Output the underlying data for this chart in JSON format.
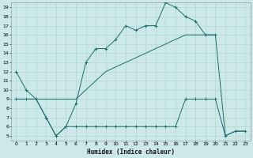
{
  "xlabel": "Humidex (Indice chaleur)",
  "background_color": "#cce8e8",
  "grid_color": "#aad4d0",
  "line_color": "#1a6e6a",
  "xlim": [
    -0.5,
    23.5
  ],
  "ylim": [
    4.5,
    19.5
  ],
  "xticks": [
    0,
    1,
    2,
    3,
    4,
    5,
    6,
    7,
    8,
    9,
    10,
    11,
    12,
    13,
    14,
    15,
    16,
    17,
    18,
    19,
    20,
    21,
    22,
    23
  ],
  "yticks": [
    5,
    6,
    7,
    8,
    9,
    10,
    11,
    12,
    13,
    14,
    15,
    16,
    17,
    18,
    19
  ],
  "series1_x": [
    0,
    1,
    2,
    3,
    4,
    5,
    6,
    7,
    8,
    9,
    10,
    11,
    12,
    13,
    14,
    15,
    16,
    17,
    18,
    19,
    20
  ],
  "series1_y": [
    12,
    10,
    9,
    7,
    5,
    6,
    8.5,
    13,
    14.5,
    14.5,
    15.5,
    17,
    16.5,
    17,
    17,
    19.5,
    19,
    18,
    17.5,
    16,
    16
  ],
  "series2_x": [
    0,
    1,
    2,
    3,
    4,
    5,
    6,
    7,
    8,
    9,
    10,
    11,
    12,
    13,
    14,
    15,
    16,
    17,
    18,
    19,
    20,
    21,
    22,
    23
  ],
  "series2_y": [
    9,
    9,
    9,
    7,
    5,
    6,
    6,
    6,
    6,
    6,
    6,
    6,
    6,
    6,
    6,
    6,
    6,
    9,
    9,
    9,
    9,
    5,
    5.5,
    5.5
  ],
  "series3_x": [
    0,
    1,
    2,
    3,
    4,
    5,
    6,
    7,
    8,
    9,
    10,
    11,
    12,
    13,
    14,
    15,
    16,
    17,
    18,
    19,
    20,
    21,
    22,
    23
  ],
  "series3_y": [
    9,
    9,
    9,
    9,
    9,
    9,
    9,
    10,
    11,
    12,
    12.5,
    13,
    13.5,
    14,
    14.5,
    15,
    15.5,
    16,
    16,
    16,
    16,
    5,
    5.5,
    5.5
  ]
}
